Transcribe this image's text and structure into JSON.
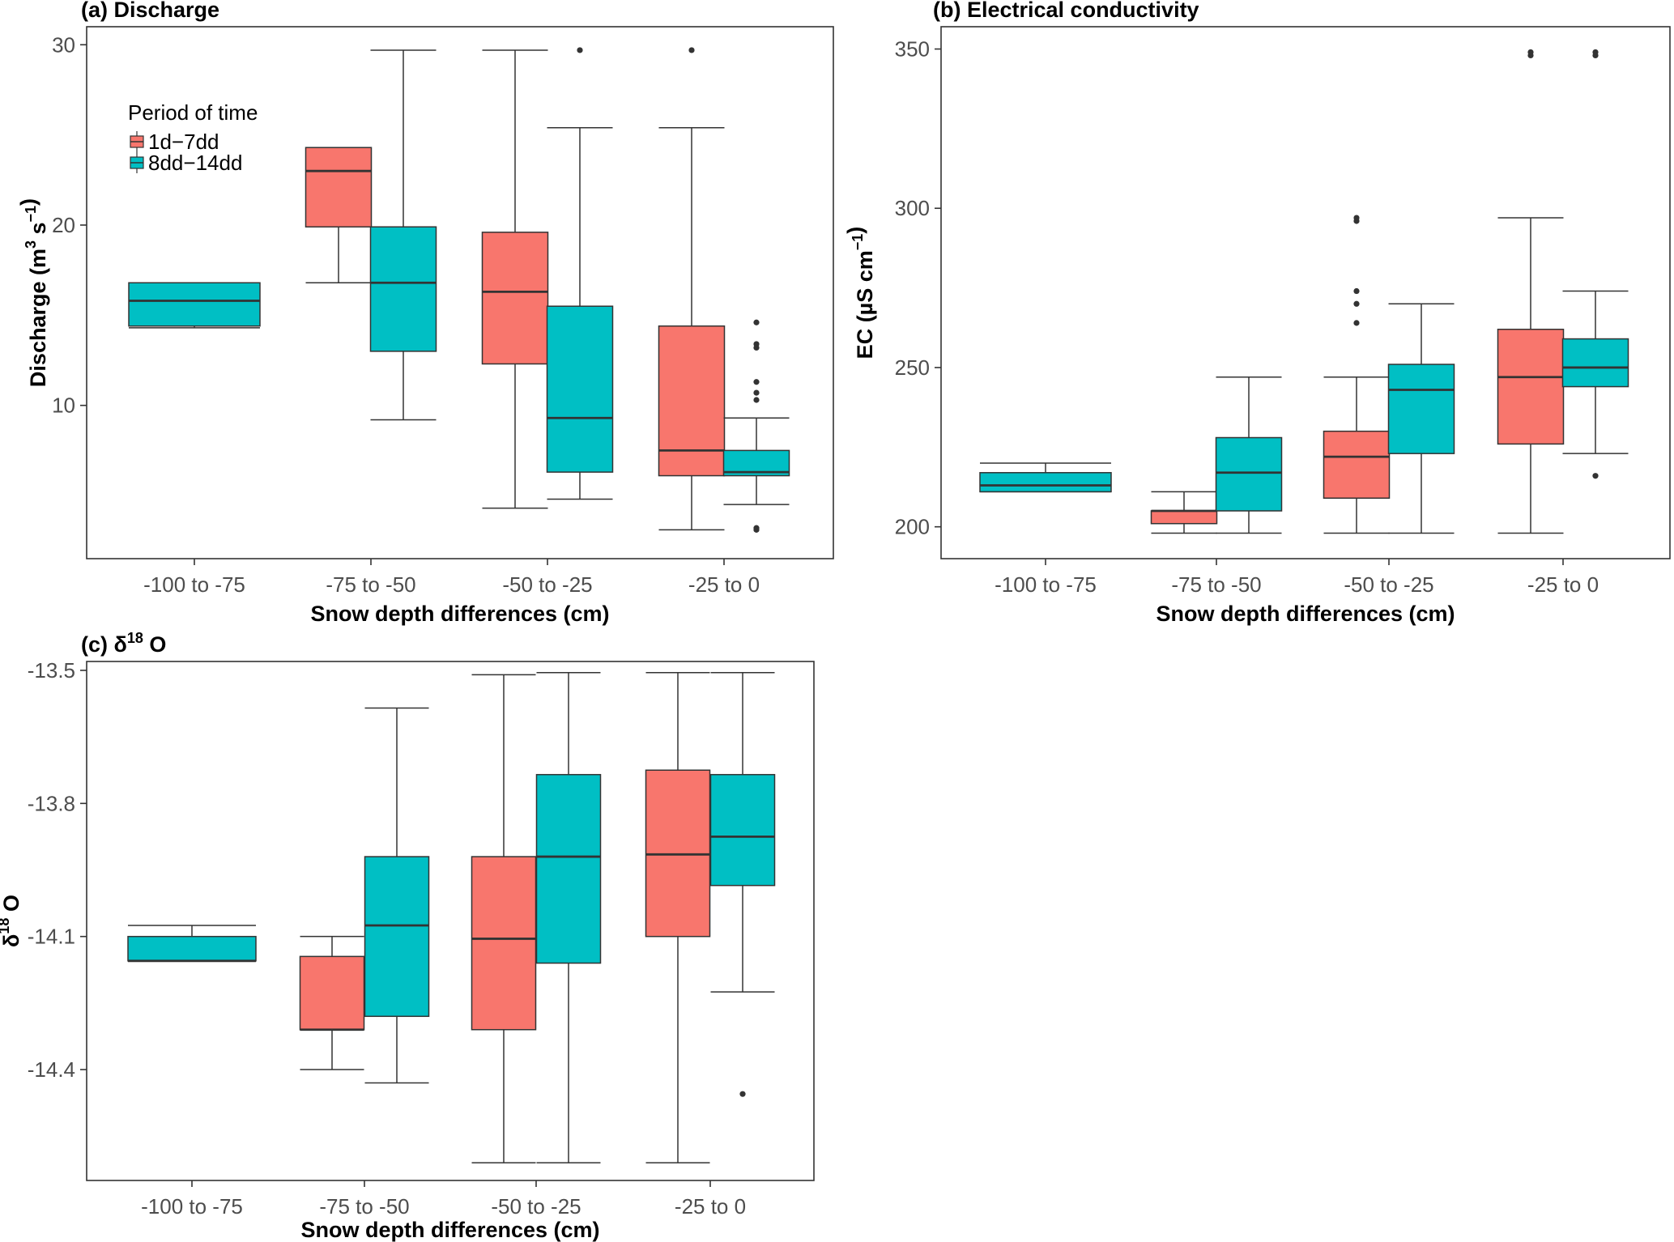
{
  "colors": {
    "group1": "#F8766D",
    "group2": "#00BFC4",
    "frame": "#333333",
    "whisker": "#333333"
  },
  "legend": {
    "title": "Period of time",
    "items": [
      "1d−7dd",
      "8dd−14dd"
    ]
  },
  "chart_data": [
    {
      "id": "a",
      "type": "box",
      "title": "(a) Discharge",
      "xlabel": "Snow depth differences (cm)",
      "ylabel": {
        "main": "Discharge (m",
        "sup1": "3",
        "mid": " s",
        "sup2": "−1",
        "end": ")"
      },
      "categories": [
        "-100 to -75",
        "-75 to -50",
        "-50 to -25",
        "-25 to 0"
      ],
      "ylim": [
        1.5,
        31
      ],
      "yticks": [
        10,
        20,
        30
      ],
      "yticklabels": [
        "10",
        "20",
        "30"
      ],
      "series": [
        {
          "name": "1d−7dd",
          "boxes": [
            null,
            {
              "low": 16.8,
              "q1": 19.9,
              "median": 23.0,
              "q3": 24.3,
              "high": 24.3,
              "outliers": []
            },
            {
              "low": 4.3,
              "q1": 12.3,
              "median": 16.3,
              "q3": 19.6,
              "high": 29.7,
              "outliers": []
            },
            {
              "low": 3.1,
              "q1": 6.1,
              "median": 7.5,
              "q3": 14.4,
              "high": 25.4,
              "outliers": [
                29.7
              ]
            }
          ]
        },
        {
          "name": "8dd−14dd",
          "boxes": [
            {
              "low": 14.3,
              "q1": 14.4,
              "median": 15.8,
              "q3": 16.8,
              "high": 16.8,
              "outliers": []
            },
            {
              "low": 9.2,
              "q1": 13.0,
              "median": 16.8,
              "q3": 19.9,
              "high": 29.7,
              "outliers": []
            },
            {
              "low": 4.8,
              "q1": 6.3,
              "median": 9.3,
              "q3": 15.5,
              "high": 25.4,
              "outliers": [
                29.7
              ]
            },
            {
              "low": 4.5,
              "q1": 6.1,
              "median": 6.3,
              "q3": 7.5,
              "high": 9.3,
              "outliers": [
                3.1,
                3.2,
                10.3,
                10.7,
                11.3,
                13.2,
                13.4,
                14.6
              ]
            }
          ]
        }
      ]
    },
    {
      "id": "b",
      "type": "box",
      "title": "(b) Electrical conductivity",
      "xlabel": "Snow depth differences (cm)",
      "ylabel": {
        "main": "EC (µS cm",
        "sup1": "−1",
        "mid": "",
        "sup2": "",
        "end": ")"
      },
      "categories": [
        "-100 to -75",
        "-75 to -50",
        "-50 to -25",
        "-25 to 0"
      ],
      "ylim": [
        190,
        357
      ],
      "yticks": [
        200,
        250,
        300,
        350
      ],
      "yticklabels": [
        "200",
        "250",
        "300",
        "350"
      ],
      "series": [
        {
          "name": "1d−7dd",
          "boxes": [
            null,
            {
              "low": 198,
              "q1": 201,
              "median": 205,
              "q3": 205,
              "high": 211,
              "outliers": []
            },
            {
              "low": 198,
              "q1": 209,
              "median": 222,
              "q3": 230,
              "high": 247,
              "outliers": [
                264,
                270,
                274,
                296,
                297
              ]
            },
            {
              "low": 198,
              "q1": 226,
              "median": 247,
              "q3": 262,
              "high": 297,
              "outliers": [
                348,
                349
              ]
            }
          ]
        },
        {
          "name": "8dd−14dd",
          "boxes": [
            {
              "low": 211,
              "q1": 211,
              "median": 213,
              "q3": 217,
              "high": 220,
              "outliers": []
            },
            {
              "low": 198,
              "q1": 205,
              "median": 217,
              "q3": 228,
              "high": 247,
              "outliers": []
            },
            {
              "low": 198,
              "q1": 223,
              "median": 243,
              "q3": 251,
              "high": 270,
              "outliers": []
            },
            {
              "low": 223,
              "q1": 244,
              "median": 250,
              "q3": 259,
              "high": 274,
              "outliers": [
                216,
                348,
                349
              ]
            }
          ]
        }
      ]
    },
    {
      "id": "c",
      "type": "box",
      "title": {
        "prefix": "(c) δ",
        "sup": "18",
        "suffix": " O"
      },
      "xlabel": "Snow depth differences (cm)",
      "ylabel": {
        "main": "δ",
        "sup1": "18",
        "mid": " O",
        "sup2": "",
        "end": ""
      },
      "categories": [
        "-100 to -75",
        "-75 to -50",
        "-50 to -25",
        "-25 to 0"
      ],
      "ylim": [
        -14.65,
        -13.48
      ],
      "yticks": [
        -14.4,
        -14.1,
        -13.8,
        -13.5
      ],
      "yticklabels": [
        "-14.4",
        "-14.1",
        "-13.8",
        "-13.5"
      ],
      "series": [
        {
          "name": "1d−7dd",
          "boxes": [
            null,
            {
              "low": -14.4,
              "q1": -14.31,
              "median": -14.31,
              "q3": -14.145,
              "high": -14.1,
              "outliers": []
            },
            {
              "low": -14.61,
              "q1": -14.31,
              "median": -14.105,
              "q3": -13.92,
              "high": -13.51,
              "outliers": []
            },
            {
              "low": -14.61,
              "q1": -14.1,
              "median": -13.915,
              "q3": -13.725,
              "high": -13.505,
              "outliers": []
            }
          ]
        },
        {
          "name": "8dd−14dd",
          "boxes": [
            {
              "low": -14.155,
              "q1": -14.155,
              "median": -14.155,
              "q3": -14.1,
              "high": -14.075,
              "outliers": []
            },
            {
              "low": -14.43,
              "q1": -14.28,
              "median": -14.075,
              "q3": -13.92,
              "high": -13.585,
              "outliers": []
            },
            {
              "low": -14.61,
              "q1": -14.16,
              "median": -13.92,
              "q3": -13.735,
              "high": -13.505,
              "outliers": []
            },
            {
              "low": -14.225,
              "q1": -13.985,
              "median": -13.875,
              "q3": -13.735,
              "high": -13.505,
              "outliers": [
                -14.455
              ]
            }
          ]
        }
      ]
    }
  ]
}
